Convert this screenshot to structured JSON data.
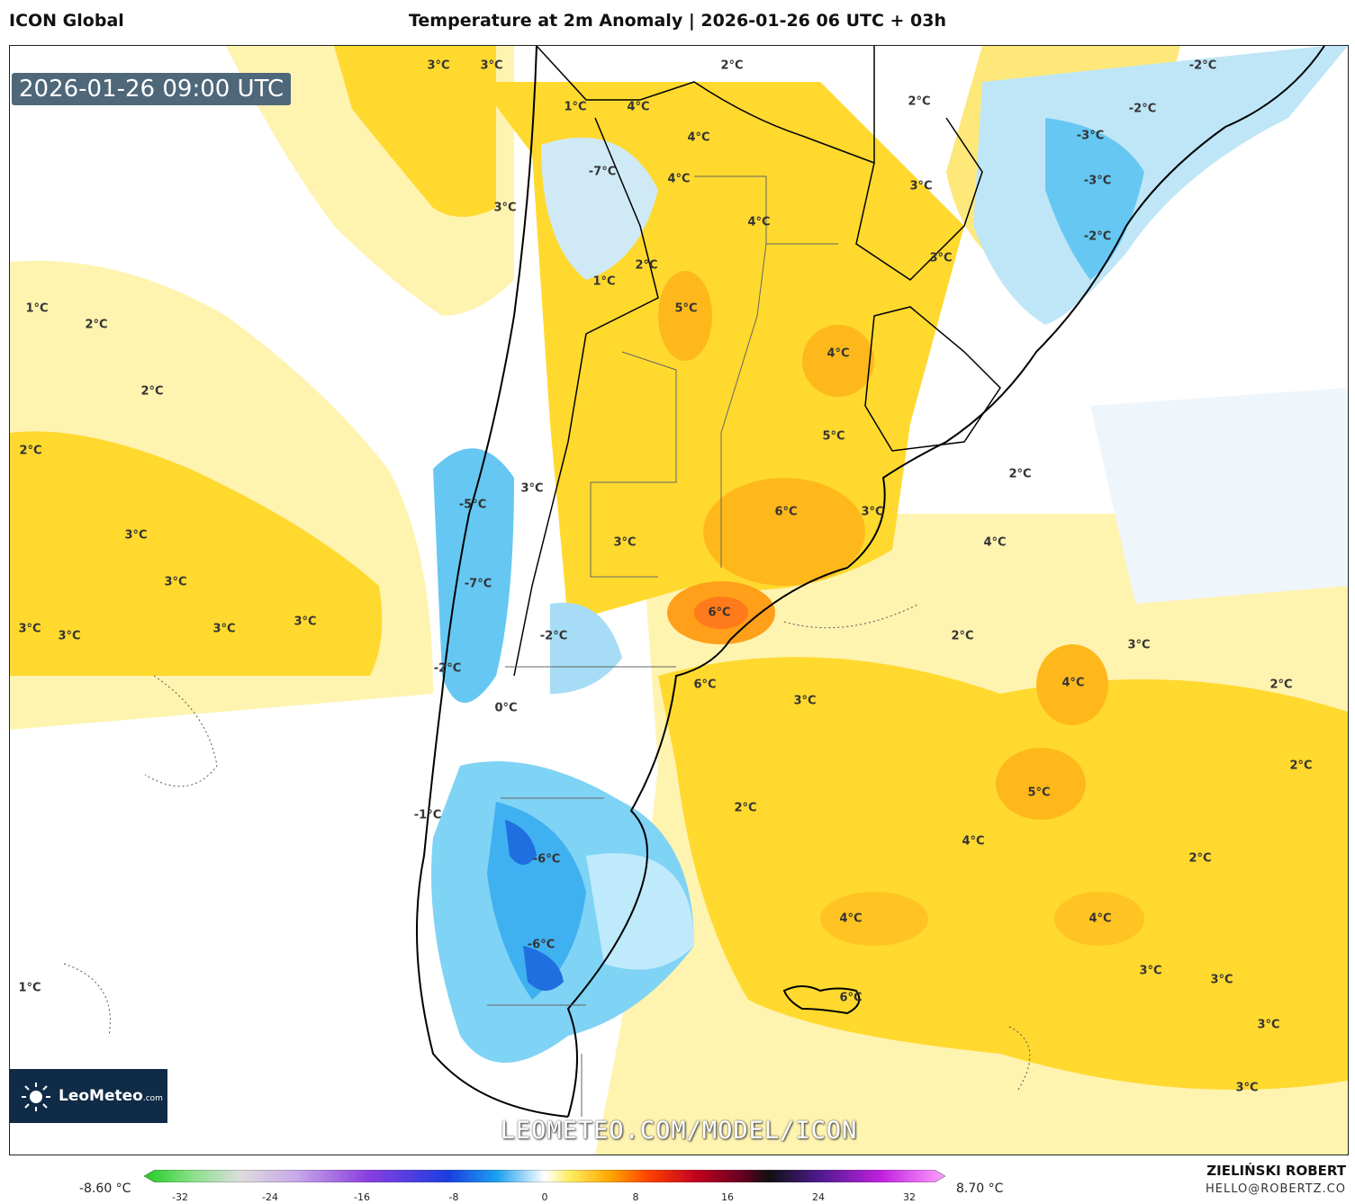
{
  "header": {
    "model": "ICON Global",
    "title": "Temperature at 2m Anomaly | 2026-01-26 06 UTC + 03h"
  },
  "map": {
    "timestamp": "2026-01-26 09:00 UTC",
    "watermark": "LEOMETEO.COM/MODEL/ICON",
    "logo_text": "LeoMeteo",
    "logo_suffix": ".com",
    "labels": [
      {
        "text": "3°C"
      },
      {
        "text": "3°C"
      },
      {
        "text": "2°C"
      },
      {
        "text": "2°C"
      },
      {
        "text": "-2°C"
      },
      {
        "text": "1°C"
      },
      {
        "text": "4°C"
      },
      {
        "text": "-2°C"
      },
      {
        "text": "4°C"
      },
      {
        "text": "-3°C"
      },
      {
        "text": "-7°C"
      },
      {
        "text": "4°C"
      },
      {
        "text": "3°C"
      },
      {
        "text": "-3°C"
      },
      {
        "text": "3°C"
      },
      {
        "text": "4°C"
      },
      {
        "text": "-2°C"
      },
      {
        "text": "1°C"
      },
      {
        "text": "2°C"
      },
      {
        "text": "3°C"
      },
      {
        "text": "1°C"
      },
      {
        "text": "2°C"
      },
      {
        "text": "5°C"
      },
      {
        "text": "4°C"
      },
      {
        "text": "2°C"
      },
      {
        "text": "2°C"
      },
      {
        "text": "5°C"
      },
      {
        "text": "2°C"
      },
      {
        "text": "-5°C"
      },
      {
        "text": "3°C"
      },
      {
        "text": "6°C"
      },
      {
        "text": "3°C"
      },
      {
        "text": "3°C"
      },
      {
        "text": "3°C"
      },
      {
        "text": "4°C"
      },
      {
        "text": "3°C"
      },
      {
        "text": "-7°C"
      },
      {
        "text": "6°C"
      },
      {
        "text": "3°C"
      },
      {
        "text": "3°C"
      },
      {
        "text": "3°C"
      },
      {
        "text": "3°C"
      },
      {
        "text": "-2°C"
      },
      {
        "text": "2°C"
      },
      {
        "text": "3°C"
      },
      {
        "text": "-2°C"
      },
      {
        "text": "6°C"
      },
      {
        "text": "4°C"
      },
      {
        "text": "2°C"
      },
      {
        "text": "0°C"
      },
      {
        "text": "3°C"
      },
      {
        "text": "2°C"
      },
      {
        "text": "5°C"
      },
      {
        "text": "-1°C"
      },
      {
        "text": "2°C"
      },
      {
        "text": "-6°C"
      },
      {
        "text": "4°C"
      },
      {
        "text": "2°C"
      },
      {
        "text": "4°C"
      },
      {
        "text": "4°C"
      },
      {
        "text": "-6°C"
      },
      {
        "text": "1°C"
      },
      {
        "text": "3°C"
      },
      {
        "text": "3°C"
      },
      {
        "text": "6°C"
      },
      {
        "text": "3°C"
      },
      {
        "text": "3°C"
      }
    ]
  },
  "colorbar": {
    "min_label": "-8.60 °C",
    "max_label": "8.70 °C",
    "ticks": [
      "-32",
      "-24",
      "-16",
      "-8",
      "0",
      "8",
      "16",
      "24",
      "32"
    ]
  },
  "credit": {
    "name": "ZIELIŃSKI ROBERT",
    "email": "HELLO@ROBERTZ.CO"
  }
}
